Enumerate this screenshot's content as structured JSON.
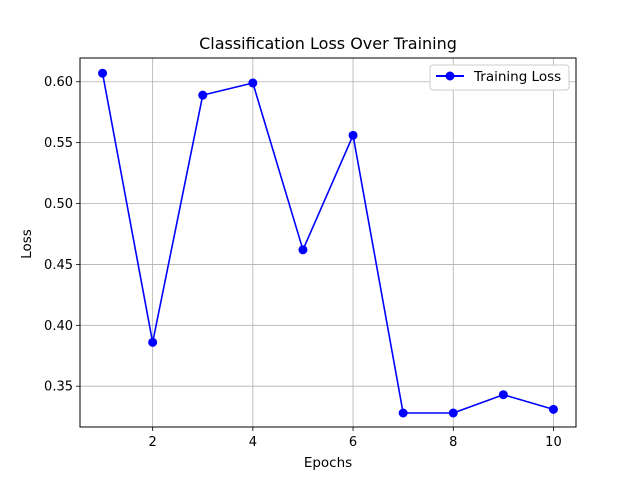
{
  "chart_data": {
    "type": "line",
    "title": "Classification Loss Over Training",
    "xlabel": "Epochs",
    "ylabel": "Loss",
    "xlim": [
      0.55,
      10.45
    ],
    "ylim": [
      0.3165,
      0.6195
    ],
    "xticks": [
      2,
      4,
      6,
      8,
      10
    ],
    "yticks": [
      0.35,
      0.4,
      0.45,
      0.5,
      0.55,
      0.6
    ],
    "ytick_labels": [
      "0.35",
      "0.40",
      "0.45",
      "0.50",
      "0.55",
      "0.60"
    ],
    "grid": true,
    "legend_position": "top-right",
    "series": [
      {
        "name": "Training Loss",
        "color": "#0000ff",
        "marker": "circle",
        "x": [
          1,
          2,
          3,
          4,
          5,
          6,
          7,
          8,
          9,
          10
        ],
        "values": [
          0.607,
          0.386,
          0.589,
          0.599,
          0.462,
          0.556,
          0.328,
          0.328,
          0.343,
          0.331
        ]
      }
    ]
  }
}
